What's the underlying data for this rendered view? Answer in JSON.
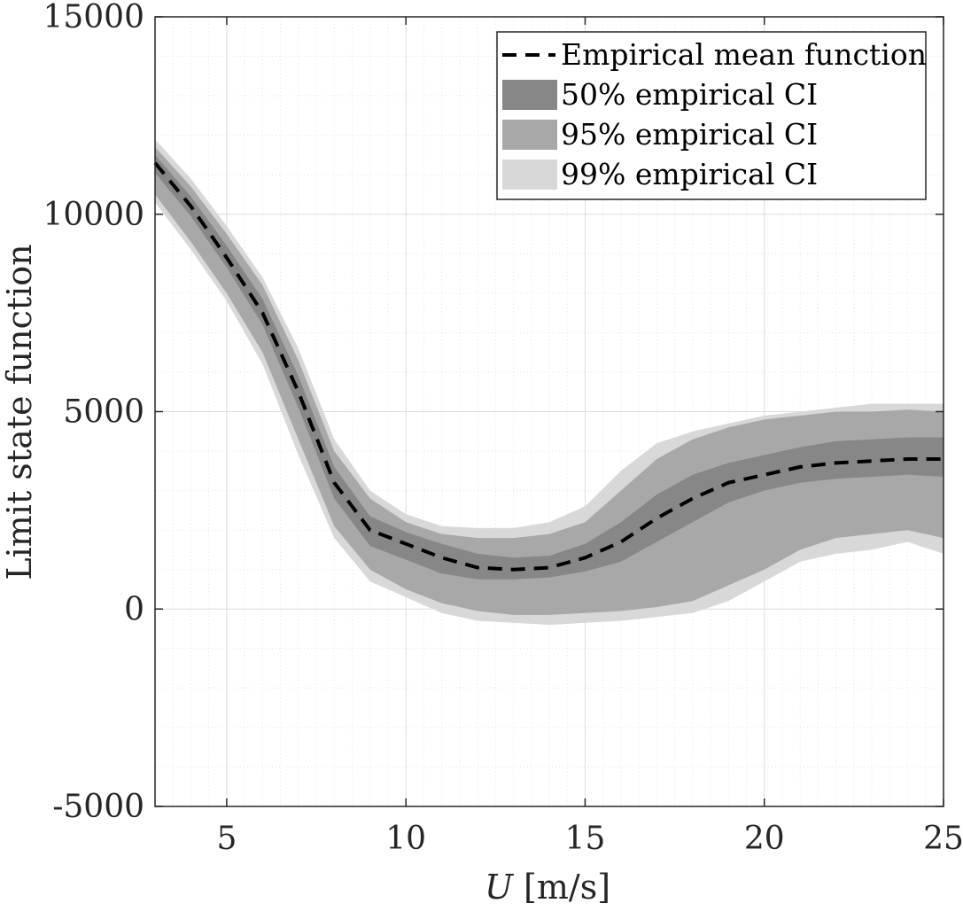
{
  "chart_data": {
    "type": "area",
    "title": "",
    "xlabel_var": "U",
    "xlabel_unit": " [m/s]",
    "ylabel": "Limit state function",
    "xlim": [
      3,
      25
    ],
    "ylim": [
      -5000,
      15000
    ],
    "grid": true,
    "minor_grid": true,
    "legend_position": "top-right",
    "x_ticks": [
      5,
      10,
      15,
      20,
      25
    ],
    "x_tick_labels": [
      "5",
      "10",
      "15",
      "20",
      "25"
    ],
    "y_ticks": [
      -5000,
      0,
      5000,
      10000,
      15000
    ],
    "y_tick_labels": [
      "-5000",
      "0",
      "5000",
      "10000",
      "15000"
    ],
    "x": [
      3,
      4,
      5,
      6,
      7,
      8,
      9,
      10,
      11,
      12,
      13,
      14,
      15,
      16,
      17,
      18,
      19,
      20,
      21,
      22,
      23,
      24,
      25
    ],
    "series": [
      {
        "name": "Empirical mean function",
        "style": "dashed",
        "color": "#000000",
        "values": [
          11300,
          10200,
          8900,
          7500,
          5500,
          3200,
          2000,
          1650,
          1300,
          1050,
          1000,
          1050,
          1300,
          1700,
          2300,
          2800,
          3200,
          3400,
          3600,
          3700,
          3750,
          3800,
          3800
        ]
      }
    ],
    "bands": [
      {
        "name": "99% empirical CI",
        "color": "#d8d8d8",
        "lower": [
          10300,
          9100,
          7800,
          6200,
          3900,
          1800,
          700,
          300,
          -100,
          -300,
          -350,
          -400,
          -350,
          -300,
          -200,
          -100,
          200,
          700,
          1200,
          1400,
          1500,
          1700,
          1400
        ],
        "upper": [
          11900,
          10900,
          9700,
          8400,
          6600,
          4300,
          3000,
          2400,
          2100,
          2050,
          2050,
          2200,
          2600,
          3500,
          4200,
          4500,
          4700,
          4900,
          5000,
          5100,
          5200,
          5200,
          5200
        ]
      },
      {
        "name": "95% empirical CI",
        "color": "#a8a8a8",
        "lower": [
          10500,
          9300,
          8000,
          6500,
          4300,
          2100,
          1000,
          500,
          150,
          -50,
          -150,
          -150,
          -100,
          -50,
          50,
          200,
          600,
          1000,
          1500,
          1800,
          1900,
          2000,
          1800
        ],
        "upper": [
          11700,
          10700,
          9500,
          8200,
          6300,
          4000,
          2800,
          2200,
          1900,
          1800,
          1800,
          1900,
          2200,
          3000,
          3800,
          4300,
          4600,
          4800,
          4900,
          5000,
          5000,
          5050,
          5000
        ]
      },
      {
        "name": "50% empirical CI",
        "color": "#878787",
        "lower": [
          11050,
          9950,
          8650,
          7200,
          5100,
          2800,
          1600,
          1250,
          900,
          750,
          750,
          800,
          950,
          1200,
          1700,
          2200,
          2700,
          3000,
          3200,
          3300,
          3350,
          3400,
          3350
        ],
        "upper": [
          11500,
          10450,
          9200,
          7850,
          5900,
          3600,
          2350,
          1950,
          1650,
          1400,
          1300,
          1350,
          1650,
          2200,
          2900,
          3400,
          3700,
          3900,
          4100,
          4250,
          4300,
          4350,
          4350
        ]
      }
    ],
    "legend": [
      {
        "label": "Empirical mean function",
        "kind": "line"
      },
      {
        "label": "50% empirical CI",
        "kind": "patch",
        "color": "#878787"
      },
      {
        "label": "95% empirical CI",
        "kind": "patch",
        "color": "#a8a8a8"
      },
      {
        "label": "99% empirical CI",
        "kind": "patch",
        "color": "#d8d8d8"
      }
    ]
  }
}
